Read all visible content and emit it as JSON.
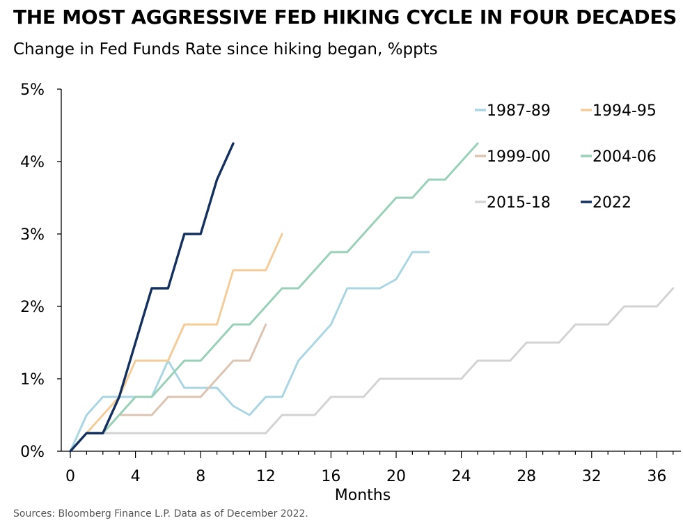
{
  "header": {
    "title": "THE MOST AGGRESSIVE FED HIKING CYCLE IN FOUR DECADES",
    "subtitle": "Change in Fed Funds Rate since hiking began, %ppts"
  },
  "footer": {
    "source": "Sources: Bloomberg Finance L.P. Data as of December 2022."
  },
  "chart_data": {
    "type": "line",
    "title": "THE MOST AGGRESSIVE FED HIKING CYCLE IN FOUR DECADES",
    "subtitle": "Change in Fed Funds Rate since hiking began, %ppts",
    "xlabel": "Months",
    "ylabel": "",
    "xlim": [
      0,
      37.5
    ],
    "ylim": [
      0,
      5
    ],
    "x_ticks": [
      0,
      4,
      8,
      12,
      16,
      20,
      24,
      28,
      32,
      36
    ],
    "x_tick_labels": [
      "0",
      "4",
      "8",
      "12",
      "16",
      "20",
      "24",
      "28",
      "32",
      "36"
    ],
    "y_ticks": [
      0,
      1,
      2,
      3,
      4,
      5
    ],
    "y_tick_labels": [
      "0%",
      "1%",
      "2%",
      "3%",
      "4%",
      "5%"
    ],
    "grid": false,
    "legend_position": "top-right",
    "series": [
      {
        "name": "1987-89",
        "color": "#a9d6e2",
        "x": [
          0,
          1,
          2,
          3,
          4,
          5,
          6,
          7,
          8,
          9,
          10,
          11,
          12,
          13,
          14,
          15,
          16,
          17,
          18,
          19,
          20,
          21,
          22
        ],
        "values": [
          0,
          0.5,
          0.75,
          0.75,
          0.75,
          0.75,
          1.25,
          0.875,
          0.875,
          0.875,
          0.625,
          0.5,
          0.75,
          0.75,
          1.25,
          1.5,
          1.75,
          2.25,
          2.25,
          2.25,
          2.375,
          2.75,
          2.75
        ]
      },
      {
        "name": "1994-95",
        "color": "#f3cc99",
        "x": [
          0,
          1,
          2,
          3,
          4,
          5,
          6,
          7,
          8,
          9,
          10,
          11,
          12,
          13
        ],
        "values": [
          0,
          0.25,
          0.5,
          0.75,
          1.25,
          1.25,
          1.25,
          1.75,
          1.75,
          1.75,
          2.5,
          2.5,
          2.5,
          3.0
        ]
      },
      {
        "name": "1999-00",
        "color": "#dcc4b3",
        "x": [
          0,
          1,
          2,
          3,
          4,
          5,
          6,
          7,
          8,
          9,
          10,
          11,
          12
        ],
        "values": [
          0,
          0.25,
          0.25,
          0.5,
          0.5,
          0.5,
          0.75,
          0.75,
          0.75,
          1.0,
          1.25,
          1.25,
          1.75
        ]
      },
      {
        "name": "2004-06",
        "color": "#98d0b8",
        "x": [
          0,
          1,
          2,
          3,
          4,
          5,
          6,
          7,
          8,
          9,
          10,
          11,
          12,
          13,
          14,
          15,
          16,
          17,
          18,
          19,
          20,
          21,
          22,
          23,
          24,
          25
        ],
        "values": [
          0,
          0.25,
          0.25,
          0.5,
          0.75,
          0.75,
          1.0,
          1.25,
          1.25,
          1.5,
          1.75,
          1.75,
          2.0,
          2.25,
          2.25,
          2.5,
          2.75,
          2.75,
          3.0,
          3.25,
          3.5,
          3.5,
          3.75,
          3.75,
          4.0,
          4.25
        ]
      },
      {
        "name": "2015-18",
        "color": "#d3d3d3",
        "x": [
          0,
          1,
          2,
          3,
          4,
          5,
          6,
          7,
          8,
          9,
          10,
          11,
          12,
          13,
          14,
          15,
          16,
          17,
          18,
          19,
          20,
          21,
          22,
          23,
          24,
          25,
          26,
          27,
          28,
          29,
          30,
          31,
          32,
          33,
          34,
          35,
          36,
          37
        ],
        "values": [
          0,
          0.25,
          0.25,
          0.25,
          0.25,
          0.25,
          0.25,
          0.25,
          0.25,
          0.25,
          0.25,
          0.25,
          0.25,
          0.5,
          0.5,
          0.5,
          0.75,
          0.75,
          0.75,
          1.0,
          1.0,
          1.0,
          1.0,
          1.0,
          1.0,
          1.25,
          1.25,
          1.25,
          1.5,
          1.5,
          1.5,
          1.75,
          1.75,
          1.75,
          2.0,
          2.0,
          2.0,
          2.25
        ]
      },
      {
        "name": "2022",
        "color": "#13305f",
        "x": [
          0,
          1,
          2,
          3,
          4,
          5,
          6,
          7,
          8,
          9,
          10
        ],
        "values": [
          0,
          0.25,
          0.25,
          0.75,
          1.5,
          2.25,
          2.25,
          3.0,
          3.0,
          3.75,
          4.25
        ]
      }
    ]
  }
}
